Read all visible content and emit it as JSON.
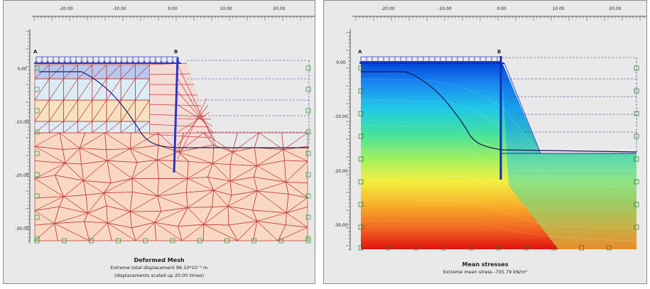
{
  "left_panel": {
    "x_ticks": [
      "-20.00",
      "-10.00",
      "0.00",
      "10.00",
      "20.00"
    ],
    "y_ticks": [
      "0.00",
      "-10.00",
      "-20.00",
      "-30.00"
    ],
    "point_labels": [
      "A",
      "B"
    ],
    "title": "Deformed Mesh",
    "line1": "Extreme total displacement 96.10*10⁻³ m",
    "line2": "(displacements scaled up 20.00 times)",
    "colors": {
      "mesh": "#c03a3a",
      "soil_deep": "#f8d8c2",
      "soil_upper": "#dcecf6",
      "sand_band": "#f6e2c0",
      "top_band": "#b8c8ee",
      "structure": "#2a35c8"
    }
  },
  "right_panel": {
    "x_ticks": [
      "-20.00",
      "-10.00",
      "0.00",
      "10.00",
      "20.00"
    ],
    "y_ticks": [
      "0.00",
      "-10.00",
      "-20.00",
      "-30.00"
    ],
    "point_labels": [
      "A",
      "B"
    ],
    "title": "Mean stresses",
    "line1": "Extreme mean stress -705.79 kN/m²",
    "colors": {
      "low": "#0050e0",
      "mid": "#3cd680",
      "high": "#f0f040",
      "max": "#e01010"
    }
  }
}
